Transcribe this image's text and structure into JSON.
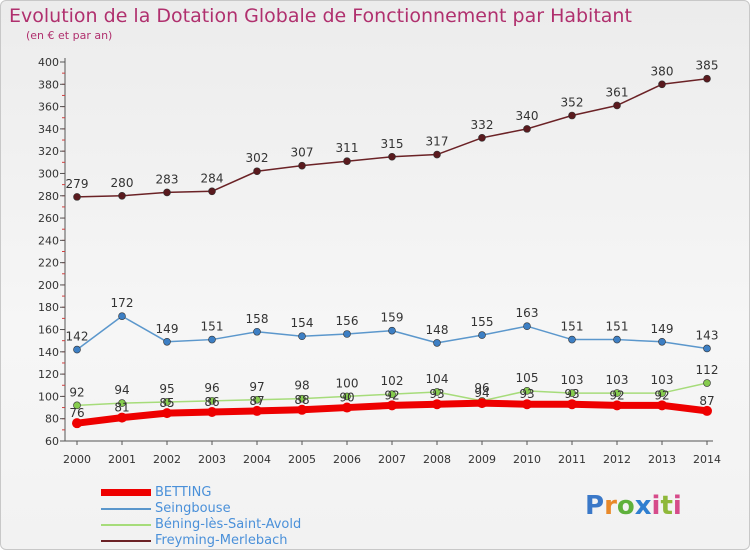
{
  "title": "Evolution de la Dotation Globale de Fonctionnement par Habitant",
  "subtitle": "(en € et par an)",
  "logo": {
    "text": "Proxiti",
    "letters": [
      "P",
      "r",
      "o",
      "x",
      "i",
      "t",
      "i"
    ]
  },
  "chart_data": {
    "type": "line",
    "title": "Evolution de la Dotation Globale de Fonctionnement par Habitant",
    "subtitle": "(en € et par an)",
    "xlabel": "",
    "ylabel": "",
    "ylim": [
      60,
      400
    ],
    "yticks": [
      60,
      80,
      100,
      120,
      140,
      160,
      180,
      200,
      220,
      240,
      260,
      280,
      300,
      320,
      340,
      360,
      380,
      400
    ],
    "grid": false,
    "legend_position": "bottom-left",
    "categories": [
      "2000",
      "2001",
      "2002",
      "2003",
      "2004",
      "2005",
      "2006",
      "2007",
      "2008",
      "2009",
      "2010",
      "2011",
      "2012",
      "2013",
      "2014"
    ],
    "series": [
      {
        "name": "Freyming-Merlebach",
        "color": "#6b2226",
        "marker": "#5a1a1e",
        "width": 1.5,
        "labels_above": true,
        "values": [
          279,
          280,
          283,
          284,
          302,
          307,
          311,
          315,
          317,
          332,
          340,
          352,
          361,
          380,
          385
        ]
      },
      {
        "name": "Seingbouse",
        "color": "#5b97cc",
        "marker": "#3d7fc4",
        "width": 1.5,
        "labels_above": true,
        "values": [
          142,
          172,
          149,
          151,
          158,
          154,
          156,
          159,
          148,
          155,
          163,
          151,
          151,
          149,
          143
        ]
      },
      {
        "name": "Béning-lès-Saint-Avold",
        "color": "#a6dc7a",
        "marker": "#86cc4e",
        "width": 1.5,
        "labels_above": true,
        "values": [
          92,
          94,
          95,
          96,
          97,
          98,
          100,
          102,
          104,
          96,
          105,
          103,
          103,
          103,
          112
        ]
      },
      {
        "name": "BETTING",
        "color": "#ee0000",
        "marker": "#ee0000",
        "width": 7,
        "labels_above": false,
        "values": [
          76,
          81,
          85,
          86,
          87,
          88,
          90,
          92,
          93,
          94,
          93,
          93,
          92,
          92,
          87
        ]
      }
    ],
    "legend_order": [
      "BETTING",
      "Seingbouse",
      "Béning-lès-Saint-Avold",
      "Freyming-Merlebach"
    ]
  }
}
